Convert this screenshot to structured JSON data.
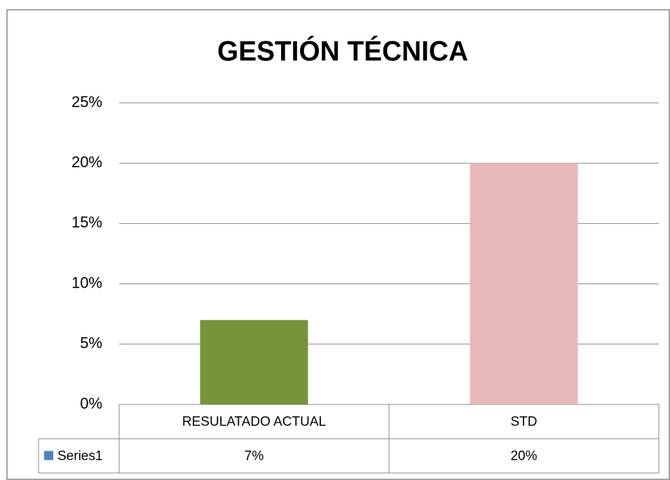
{
  "chart_data": {
    "type": "bar",
    "title": "GESTIÓN TÉCNICA",
    "categories": [
      "RESULATADO ACTUAL",
      "STD"
    ],
    "series": [
      {
        "name": "Series1",
        "color": "#4f81bd",
        "point_colors": [
          "#77933c",
          "#e6b9b8"
        ],
        "values": [
          7,
          20
        ],
        "value_labels": [
          "7%",
          "20%"
        ]
      }
    ],
    "ylim": [
      0,
      25
    ],
    "yticks": [
      {
        "value": 0,
        "label": "0%"
      },
      {
        "value": 5,
        "label": "5%"
      },
      {
        "value": 10,
        "label": "10%"
      },
      {
        "value": 15,
        "label": "15%"
      },
      {
        "value": 20,
        "label": "20%"
      },
      {
        "value": 25,
        "label": "25%"
      }
    ],
    "grid": true,
    "data_table": true
  }
}
